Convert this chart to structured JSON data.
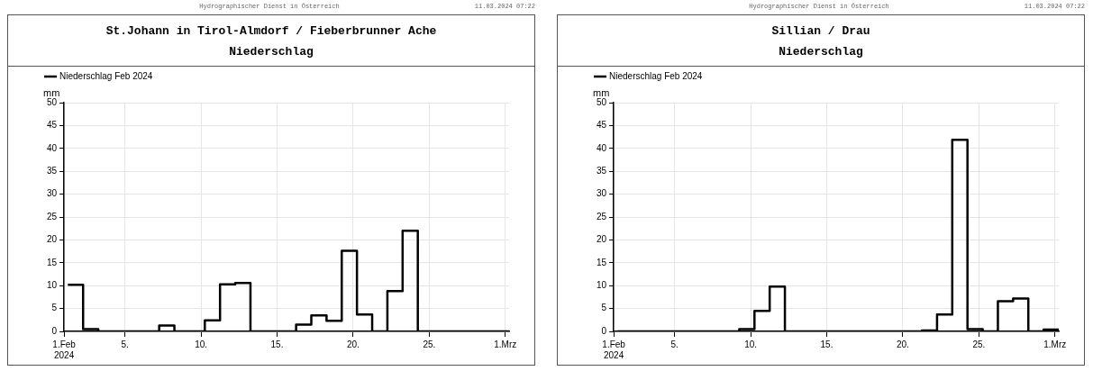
{
  "chart_data": [
    {
      "type": "step",
      "title": "St.Johann in Tirol-Almdorf / Fieberbrunner Ache",
      "subtitle": "Niederschlag",
      "ylabel": "mm",
      "annotations": [
        "Hydrographischer Dienst in Österreich",
        "11.03.2024 07:22"
      ],
      "x": [
        "2024-02-01T06:00",
        "2024-02-02T06:00",
        "2024-02-03T06:00",
        "2024-02-04T06:00",
        "2024-02-05T06:00",
        "2024-02-06T06:00",
        "2024-02-07T06:00",
        "2024-02-08T06:00",
        "2024-02-09T06:00",
        "2024-02-10T06:00",
        "2024-02-11T06:00",
        "2024-02-12T06:00",
        "2024-02-13T06:00",
        "2024-02-14T06:00",
        "2024-02-15T06:00",
        "2024-02-16T06:00",
        "2024-02-17T06:00",
        "2024-02-18T06:00",
        "2024-02-19T06:00",
        "2024-02-20T06:00",
        "2024-02-21T06:00",
        "2024-02-22T06:00",
        "2024-02-23T06:00",
        "2024-02-24T06:00",
        "2024-02-25T06:00",
        "2024-02-26T06:00",
        "2024-02-27T06:00",
        "2024-02-28T06:00",
        "2024-02-29T06:00",
        "2024-03-01T06:00"
      ],
      "series": [
        {
          "name": "Niederschlag Feb 2024",
          "color": "#000000",
          "values": [
            10.2,
            0.5,
            0,
            0,
            0,
            0,
            1.3,
            0,
            0,
            2.4,
            10.3,
            10.6,
            0,
            0,
            0,
            1.5,
            3.5,
            2.3,
            17.6,
            3.7,
            0,
            8.8,
            22.0,
            0,
            0,
            0,
            0,
            0,
            0,
            0
          ]
        }
      ],
      "xlim": [
        "2024-02-01",
        "2024-03-01T06:00"
      ],
      "xticks": [
        {
          "value": "2024-02-01",
          "label": "1.Feb\n2024"
        },
        {
          "value": "2024-02-05",
          "label": "5."
        },
        {
          "value": "2024-02-10",
          "label": "10."
        },
        {
          "value": "2024-02-15",
          "label": "15."
        },
        {
          "value": "2024-02-20",
          "label": "20."
        },
        {
          "value": "2024-02-25",
          "label": "25."
        },
        {
          "value": "2024-03-01",
          "label": "1.Mrz"
        }
      ],
      "ylim": [
        0,
        50
      ],
      "yticks": [
        0,
        5,
        10,
        15,
        20,
        25,
        30,
        35,
        40,
        45,
        50
      ],
      "grid": true,
      "legend": "top left",
      "marker": "none"
    },
    {
      "type": "step",
      "title": "Sillian / Drau",
      "subtitle": "Niederschlag",
      "ylabel": "mm",
      "annotations": [
        "Hydrographischer Dienst in Österreich",
        "11.03.2024 07:22"
      ],
      "x": [
        "2024-02-01T06:00",
        "2024-02-02T06:00",
        "2024-02-03T06:00",
        "2024-02-04T06:00",
        "2024-02-05T06:00",
        "2024-02-06T06:00",
        "2024-02-07T06:00",
        "2024-02-08T06:00",
        "2024-02-09T06:00",
        "2024-02-10T06:00",
        "2024-02-11T06:00",
        "2024-02-12T06:00",
        "2024-02-13T06:00",
        "2024-02-14T06:00",
        "2024-02-15T06:00",
        "2024-02-16T06:00",
        "2024-02-17T06:00",
        "2024-02-18T06:00",
        "2024-02-19T06:00",
        "2024-02-20T06:00",
        "2024-02-21T06:00",
        "2024-02-22T06:00",
        "2024-02-23T06:00",
        "2024-02-24T06:00",
        "2024-02-25T06:00",
        "2024-02-26T06:00",
        "2024-02-27T06:00",
        "2024-02-28T06:00",
        "2024-02-29T06:00",
        "2024-03-01T06:00"
      ],
      "series": [
        {
          "name": "Niederschlag Feb 2024",
          "color": "#000000",
          "values": [
            0,
            0,
            0,
            0,
            0,
            0,
            0,
            0,
            0.5,
            4.5,
            9.8,
            0,
            0,
            0,
            0,
            0,
            0,
            0,
            0,
            0,
            0.2,
            3.7,
            41.9,
            0.5,
            0,
            6.6,
            7.2,
            0,
            0.4,
            0.4
          ]
        }
      ],
      "xlim": [
        "2024-02-01",
        "2024-03-01T06:00"
      ],
      "xticks": [
        {
          "value": "2024-02-01",
          "label": "1.Feb\n2024"
        },
        {
          "value": "2024-02-05",
          "label": "5."
        },
        {
          "value": "2024-02-10",
          "label": "10."
        },
        {
          "value": "2024-02-15",
          "label": "15."
        },
        {
          "value": "2024-02-20",
          "label": "20."
        },
        {
          "value": "2024-02-25",
          "label": "25."
        },
        {
          "value": "2024-03-01",
          "label": "1.Mrz"
        }
      ],
      "ylim": [
        0,
        50
      ],
      "yticks": [
        0,
        5,
        10,
        15,
        20,
        25,
        30,
        35,
        40,
        45,
        50
      ],
      "grid": true,
      "legend": "top left",
      "marker": "none"
    }
  ]
}
